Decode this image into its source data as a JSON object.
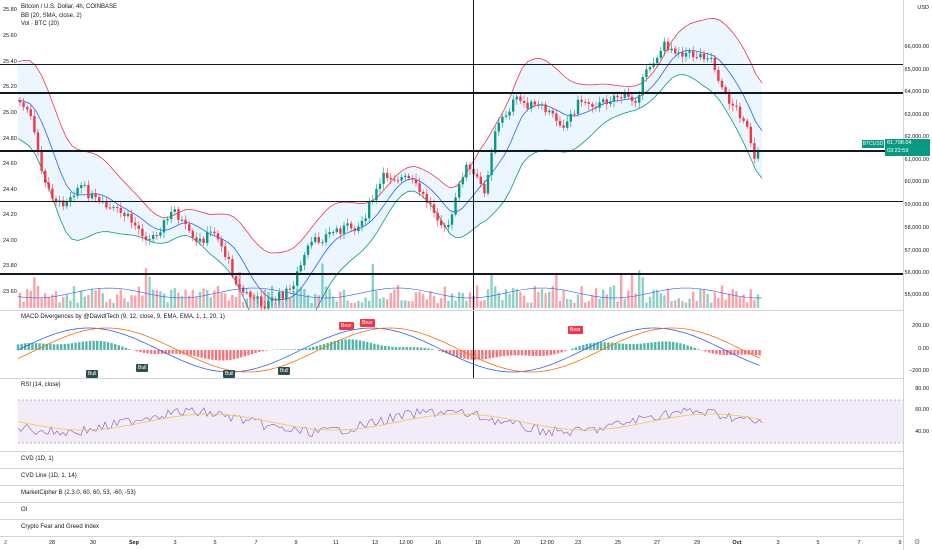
{
  "header": {
    "title": "Bitcoin / U.S. Dollar, 4h, COINBASE",
    "indicators": [
      "BB (20, SMA, close, 2)",
      "Vol · BTC (20)"
    ]
  },
  "axis_right": {
    "currency": "USD",
    "price_ticks": [
      "66,000.00",
      "65,000.00",
      "64,000.00",
      "63,000.00",
      "62,000.00",
      "61,000.00",
      "60,000.00",
      "59,000.00",
      "58,000.00",
      "57,000.00",
      "56,000.00",
      "55,000.00"
    ],
    "macd_ticks": [
      "200.00",
      "0.00",
      "−200.00"
    ],
    "rsi_ticks": [
      "80.00",
      "60.00",
      "40.00"
    ]
  },
  "axis_left": {
    "ticks": [
      "25.80",
      "25.60",
      "25.40",
      "25.20",
      "25.00",
      "24.80",
      "24.60",
      "24.40",
      "24.20",
      "24.00",
      "23.80",
      "23.60"
    ]
  },
  "price_tag": {
    "ticker": "BTCUSD",
    "price": "61,798.04",
    "countdown": "03:22:59"
  },
  "panes": {
    "macd": "MACD Divergences by @DavidtTech (9, 12, close, 9, EMA, EMA, 1, 1, 20, 1)",
    "rsi": "RSI (14, close)",
    "cvd": "CVD (1D, 1)",
    "cvd_line": "CVD Line (1D, 1, 14)",
    "market_cipher": "MarketCipher B (2.3.0, 60, 60, 53, -60, -53)",
    "oi": "OI",
    "fear_greed": "Crypto Fear and Greed Index"
  },
  "macd_tags": {
    "bear": "Bear",
    "bull": "Bull"
  },
  "x_axis": [
    "28",
    "30",
    "Sep",
    "3",
    "5",
    "7",
    "9",
    "11",
    "13",
    "12:00",
    "16",
    "18",
    "20",
    "12:00",
    "23",
    "25",
    "27",
    "29",
    "Oct",
    "3",
    "5",
    "7",
    "9"
  ],
  "icons": {
    "left_tool": "z",
    "right_tool": "⚙"
  },
  "colors": {
    "bull": "#089981",
    "bear": "#f23645",
    "bb_upper": "#f23645",
    "bb_lower": "#089981",
    "bb_basis": "#2962ff",
    "rsi_line": "#7e57c2",
    "rsi_ma": "#f7c548",
    "macd_line": "#2962ff",
    "signal_line": "#ff6d00"
  }
}
